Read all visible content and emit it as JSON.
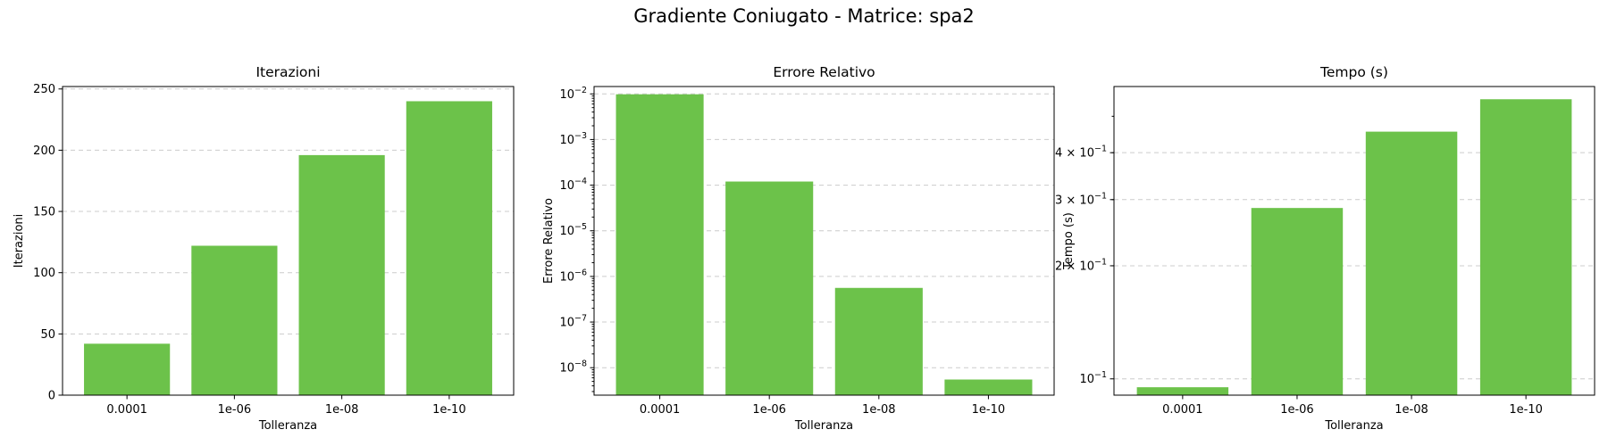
{
  "figure": {
    "suptitle": "Gradiente Coniugato - Matrice: spa2"
  },
  "colors": {
    "bar": "#6cc24a",
    "grid": "#cccccc",
    "axes": "#000000"
  },
  "chart_data": [
    {
      "type": "bar",
      "title": "Iterazioni",
      "xlabel": "Tolleranza",
      "ylabel": "Iterazioni",
      "categories": [
        "0.0001",
        "1e-06",
        "1e-08",
        "1e-10"
      ],
      "values": [
        42,
        122,
        196,
        240
      ],
      "yscale": "linear",
      "ylim": [
        0,
        252
      ],
      "yticks": [
        0,
        50,
        100,
        150,
        200,
        250
      ],
      "ytick_labels": [
        "0",
        "50",
        "100",
        "150",
        "200",
        "250"
      ],
      "grid": "y-dashed"
    },
    {
      "type": "bar",
      "title": "Errore Relativo",
      "xlabel": "Tolleranza",
      "ylabel": "Errore Relativo",
      "categories": [
        "0.0001",
        "1e-06",
        "1e-08",
        "1e-10"
      ],
      "values": [
        0.0098,
        0.00012,
        5.6e-07,
        5.5e-09
      ],
      "yscale": "log",
      "ylim": [
        2.5e-09,
        0.0145
      ],
      "yticks": [
        1e-08,
        1e-07,
        1e-06,
        1e-05,
        0.0001,
        0.001,
        0.01
      ],
      "ytick_labels": [
        {
          "base": "10",
          "exp": "−8"
        },
        {
          "base": "10",
          "exp": "−7"
        },
        {
          "base": "10",
          "exp": "−6"
        },
        {
          "base": "10",
          "exp": "−5"
        },
        {
          "base": "10",
          "exp": "−4"
        },
        {
          "base": "10",
          "exp": "−3"
        },
        {
          "base": "10",
          "exp": "−2"
        }
      ],
      "grid": "y-dashed"
    },
    {
      "type": "bar",
      "title": "Tempo (s)",
      "xlabel": "Tolleranza",
      "ylabel": "Tempo (s)",
      "categories": [
        "0.0001",
        "1e-06",
        "1e-08",
        "1e-10"
      ],
      "values": [
        0.095,
        0.285,
        0.455,
        0.555
      ],
      "yscale": "log",
      "ylim": [
        0.0905,
        0.6
      ],
      "yticks": [
        0.1,
        0.2,
        0.3,
        0.4
      ],
      "ytick_labels": [
        {
          "base": "10",
          "exp": "−1"
        },
        {
          "base": "2 × 10",
          "exp": "−1"
        },
        {
          "base": "3 × 10",
          "exp": "−1"
        },
        {
          "base": "4 × 10",
          "exp": "−1"
        }
      ],
      "grid": "y-dashed"
    }
  ]
}
